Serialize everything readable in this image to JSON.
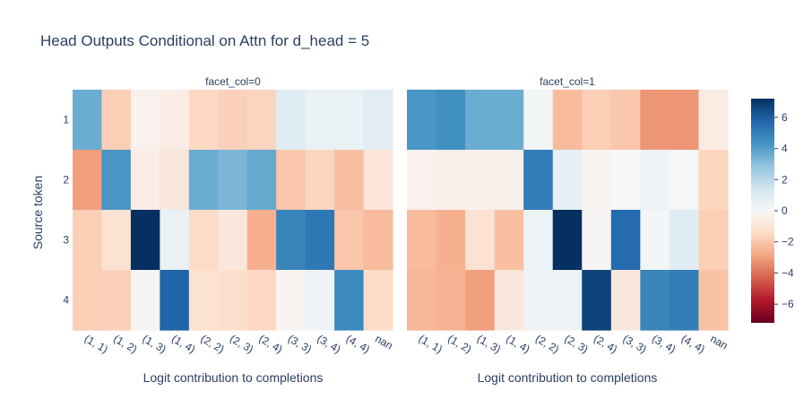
{
  "chart_data": {
    "type": "heatmap",
    "title": "Head Outputs Conditional on Attn for d_head = 5",
    "ylabel": "Source token",
    "y_categories": [
      "1",
      "2",
      "3",
      "4"
    ],
    "x_categories": [
      "(1, 1)",
      "(1, 2)",
      "(1, 3)",
      "(1, 4)",
      "(2, 2)",
      "(2, 3)",
      "(2, 4)",
      "(3, 3)",
      "(3, 4)",
      "(4, 4)",
      "nan"
    ],
    "colorscale": "RdBu",
    "zmin": -7.2,
    "zmax": 7.2,
    "colorbar_ticks": [
      6,
      4,
      2,
      0,
      -2,
      -4,
      -6
    ],
    "colorbar_tick_labels": [
      "6",
      "4",
      "2",
      "0",
      "−2",
      "−4",
      "−6"
    ],
    "facets": [
      {
        "title": "facet_col=0",
        "xlabel": "Logit contribution to completions",
        "z": [
          [
            3.6,
            -1.8,
            -0.3,
            -0.5,
            -1.5,
            -1.7,
            -1.6,
            0.9,
            0.5,
            0.5,
            0.8
          ],
          [
            -3.0,
            4.2,
            -0.5,
            -0.8,
            3.6,
            3.3,
            3.7,
            -2.0,
            -1.6,
            -2.2,
            -0.9
          ],
          [
            -1.8,
            -1.1,
            7.2,
            0.5,
            -1.4,
            -0.8,
            -2.6,
            4.8,
            5.2,
            -2.0,
            -2.3
          ],
          [
            -1.8,
            -1.7,
            -0.1,
            5.8,
            -1.1,
            -1.3,
            -1.5,
            -0.2,
            0.3,
            4.6,
            -1.4
          ]
        ]
      },
      {
        "title": "facet_col=1",
        "xlabel": "Logit contribution to completions",
        "z": [
          [
            4.2,
            4.4,
            3.6,
            3.6,
            0.2,
            -2.3,
            -1.8,
            -2.0,
            -3.2,
            -3.2,
            -0.6
          ],
          [
            -0.3,
            -0.4,
            -0.4,
            -0.4,
            5.1,
            0.6,
            -0.2,
            0.0,
            0.3,
            0.1,
            -1.6
          ],
          [
            -2.3,
            -2.6,
            -1.1,
            -2.2,
            0.4,
            7.2,
            -0.1,
            5.6,
            0.2,
            0.9,
            -1.8
          ],
          [
            -2.4,
            -2.5,
            -3.0,
            -0.8,
            0.4,
            0.4,
            6.7,
            -0.8,
            4.8,
            5.0,
            -2.1
          ]
        ]
      }
    ]
  }
}
